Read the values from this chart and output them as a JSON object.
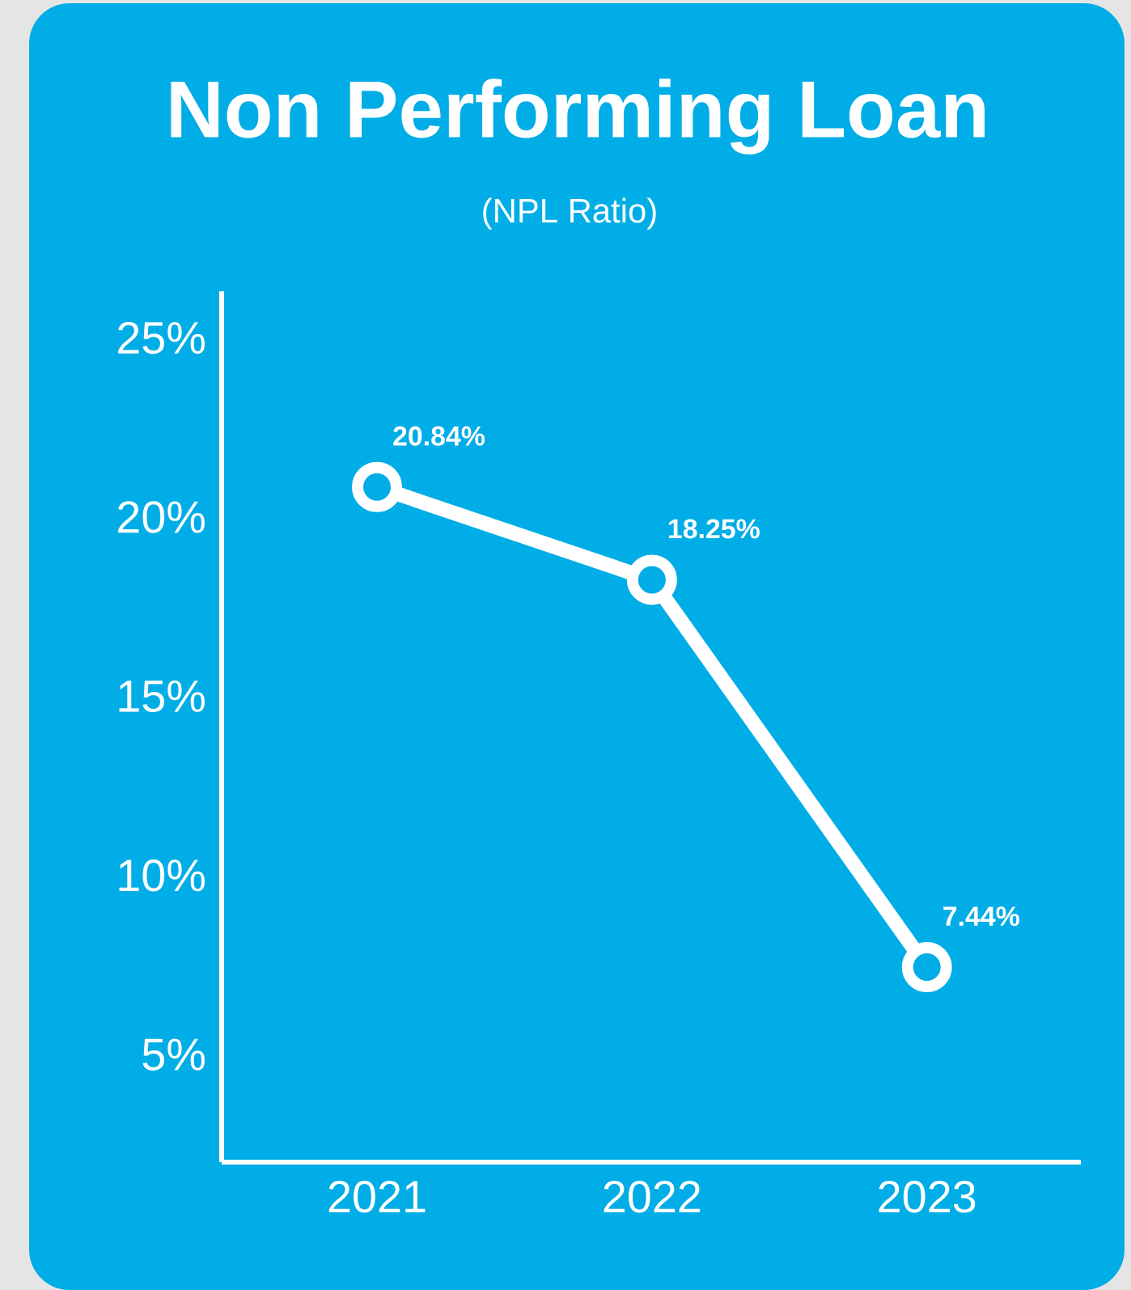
{
  "chart_data": {
    "type": "line",
    "title": "Non Performing Loan",
    "subtitle": "(NPL Ratio)",
    "categories": [
      "2021",
      "2022",
      "2023"
    ],
    "series": [
      {
        "color": "#ffffff",
        "values": [
          20.84,
          18.25,
          7.44
        ],
        "value_labels": [
          "20.84%",
          "18.25%",
          "7.44%"
        ]
      }
    ],
    "ylim": [
      2,
      26.3
    ],
    "yticks": [
      {
        "value": 5,
        "label": "5%"
      },
      {
        "value": 10,
        "label": "10%"
      },
      {
        "value": 15,
        "label": "15%"
      },
      {
        "value": 20,
        "label": "20%"
      },
      {
        "value": 25,
        "label": "25%"
      }
    ],
    "marker": "circle",
    "line_style": "solid",
    "grid": false
  }
}
